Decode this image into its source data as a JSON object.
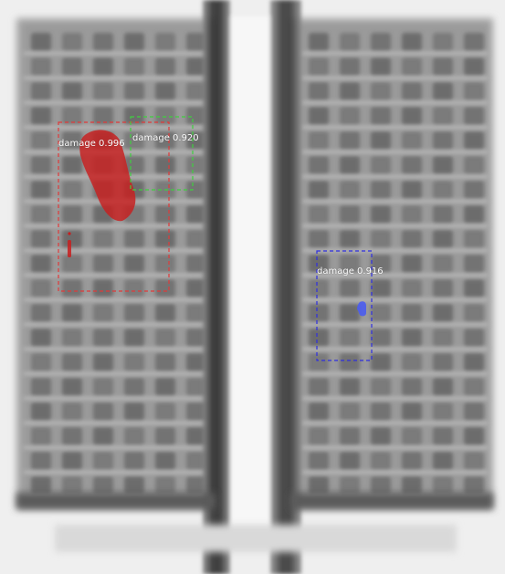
{
  "detections": [
    {
      "label": "damage 0.996",
      "class": "damage",
      "score": 0.996,
      "color": "#e03a3a",
      "mask_color": "#c81e1e"
    },
    {
      "label": "damage 0.920",
      "class": "damage",
      "score": 0.92,
      "color": "#3fcf3f"
    },
    {
      "label": "damage 0.916",
      "class": "damage",
      "score": 0.916,
      "color": "#2f2fe0",
      "mask_color": "#4a5cf0"
    }
  ],
  "colors": {
    "background": "#f2f2f2",
    "panel": "#a9a9a9",
    "cell_dark": "#6c6c6c",
    "frame_dark": "#3d3d3d"
  }
}
